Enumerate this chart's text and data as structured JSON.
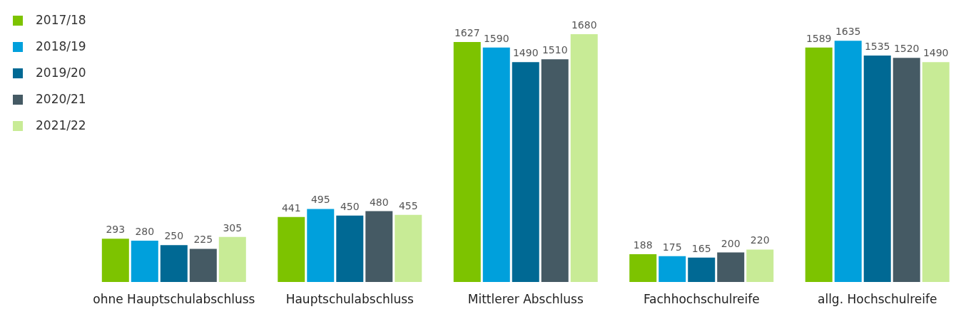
{
  "chart_data": {
    "type": "bar",
    "categories": [
      "ohne Hauptschulabschluss",
      "Hauptschulabschluss",
      "Mittlerer Abschluss",
      "Fachhochschulreife",
      "allg. Hochschulreife"
    ],
    "series": [
      {
        "name": "2017/18",
        "color": "#7dc300",
        "values": [
          293,
          441,
          1627,
          188,
          1589
        ]
      },
      {
        "name": "2018/19",
        "color": "#00a0dc",
        "values": [
          280,
          495,
          1590,
          175,
          1635
        ]
      },
      {
        "name": "2019/20",
        "color": "#006994",
        "values": [
          250,
          450,
          1490,
          165,
          1535
        ]
      },
      {
        "name": "2020/21",
        "color": "#455a64",
        "values": [
          225,
          480,
          1510,
          200,
          1520
        ]
      },
      {
        "name": "2021/22",
        "color": "#c8eb96",
        "values": [
          305,
          455,
          1680,
          220,
          1490
        ]
      }
    ],
    "data_labels": true,
    "legend": "top left",
    "grid": false
  }
}
